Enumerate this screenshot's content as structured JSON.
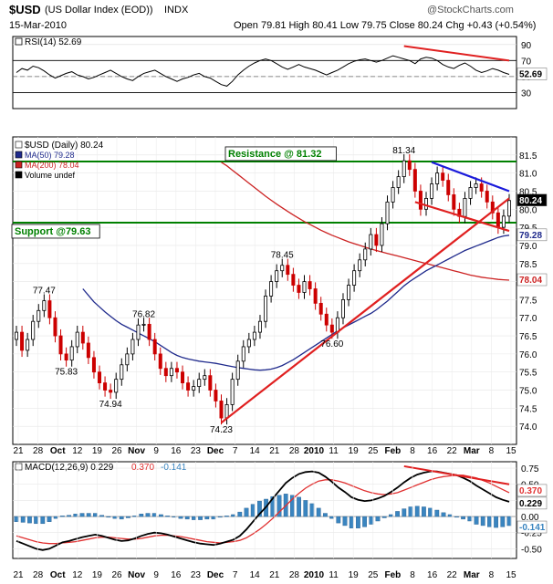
{
  "header": {
    "symbol": "$USD",
    "name": "(US Dollar Index (EOD))",
    "exchange": "INDX",
    "date": "15-Mar-2010",
    "ohlc": "Open 79.81  High 80.41  Low 79.75  Close 80.24  Chg +0.43 (+0.54%)",
    "watermark": "@StockCharts.com"
  },
  "colors": {
    "price_up": "#000000",
    "price_down": "#cc0000",
    "ma50": "#1f2a8c",
    "ma200": "#cc2222",
    "support_resistance": "#008000",
    "trendline_red": "#e02020",
    "trendline_blue": "#1a1adb",
    "macd_line": "#000000",
    "macd_signal": "#e03030",
    "histogram": "#3a85c0"
  },
  "chart_data": [
    {
      "type": "line",
      "panel": "rsi",
      "legend": "RSI(14) 52.69",
      "last_value_label": "52.69",
      "ylim": [
        10,
        100
      ],
      "y_ticks": [
        90,
        70,
        50,
        30
      ],
      "reference_lines": [
        70,
        30
      ],
      "annotations": [
        {
          "kind": "trendline",
          "color": "red",
          "from_date": "2010-02-16",
          "to_date": "2010-03-15",
          "from_value": 88,
          "to_value": 70
        }
      ],
      "series": [
        {
          "values": [
            55,
            60,
            58,
            63,
            61,
            57,
            52,
            48,
            51,
            54,
            56,
            52,
            50,
            47,
            49,
            52,
            55,
            58,
            54,
            50,
            47,
            45,
            50,
            54,
            56,
            58,
            54,
            50,
            47,
            44,
            47,
            49,
            52,
            54,
            50,
            48,
            44,
            40,
            38,
            44,
            52,
            58,
            63,
            67,
            70,
            72,
            70,
            66,
            62,
            59,
            62,
            65,
            62,
            60,
            58,
            55,
            52,
            55,
            58,
            62,
            66,
            69,
            71,
            72,
            70,
            68,
            70,
            73,
            76,
            74,
            72,
            70,
            66,
            72,
            74,
            73,
            70,
            65,
            62,
            60,
            64,
            67,
            63,
            58,
            55,
            57,
            60,
            58,
            55,
            52.69
          ]
        }
      ]
    },
    {
      "type": "candlestick",
      "panel": "price",
      "legend": [
        "$USD (Daily) 80.24",
        "MA(50) 79.28",
        "MA(200) 78.04",
        "Volume undef"
      ],
      "ylim": [
        73.5,
        82.0
      ],
      "y_ticks": [
        81.5,
        81.0,
        80.5,
        80.0,
        79.5,
        79.0,
        78.5,
        78.0,
        77.5,
        77.0,
        76.5,
        76.0,
        75.5,
        75.0,
        74.5,
        74.0
      ],
      "last_value_labels": {
        "close": "80.24",
        "ma50": "79.28",
        "ma200": "78.04"
      },
      "point_labels": [
        {
          "date": "2009-09-28",
          "text": "77.47",
          "value": 77.47
        },
        {
          "date": "2009-10-08",
          "text": "75.83",
          "value": 75.83
        },
        {
          "date": "2009-10-22",
          "text": "74.94",
          "value": 74.94
        },
        {
          "date": "2009-11-02",
          "text": "76.82",
          "value": 76.82
        },
        {
          "date": "2009-11-25",
          "text": "74.23",
          "value": 74.23
        },
        {
          "date": "2009-12-22",
          "text": "78.45",
          "value": 78.45
        },
        {
          "date": "2010-01-11",
          "text": "76.60",
          "value": 76.6
        },
        {
          "date": "2010-02-04",
          "text": "81.34",
          "value": 81.34
        }
      ],
      "annotations": [
        {
          "kind": "horizontal_line",
          "label": "Resistance @ 81.32",
          "value": 81.32,
          "color": "green"
        },
        {
          "kind": "horizontal_line",
          "label": "Support @79.63",
          "value": 79.63,
          "color": "green"
        },
        {
          "kind": "trendline",
          "color": "red",
          "from_date": "2009-11-30",
          "to_date": "2010-03-15",
          "from_value": 74.1,
          "to_value": 80.3
        },
        {
          "kind": "trendline",
          "color": "red",
          "from_date": "2010-02-18",
          "to_date": "2010-03-15",
          "from_value": 80.2,
          "to_value": 79.4
        },
        {
          "kind": "trendline",
          "color": "blue",
          "from_date": "2010-02-23",
          "to_date": "2010-03-15",
          "from_value": 81.3,
          "to_value": 80.5
        }
      ],
      "series": [
        {
          "name": "MA(50)",
          "values": [
            77.8,
            77.62,
            77.44,
            77.3,
            77.16,
            77.04,
            76.92,
            76.82,
            76.74,
            76.66,
            76.58,
            76.5,
            76.42,
            76.34,
            76.24,
            76.14,
            76.04,
            75.96,
            75.9,
            75.86,
            75.83,
            75.8,
            75.78,
            75.76,
            75.74,
            75.71,
            75.68,
            75.65,
            75.62,
            75.6,
            75.58,
            75.56,
            75.55,
            75.56,
            75.58,
            75.62,
            75.68,
            75.76,
            75.84,
            75.94,
            76.04,
            76.14,
            76.24,
            76.34,
            76.44,
            76.54,
            76.64,
            76.72,
            76.8,
            76.88,
            76.96,
            77.04,
            77.12,
            77.22,
            77.34,
            77.46,
            77.6,
            77.74,
            77.88,
            78.0,
            78.1,
            78.2,
            78.3,
            78.38,
            78.46,
            78.54,
            78.62,
            78.7,
            78.78,
            78.86,
            78.92,
            78.98,
            79.04,
            79.1,
            79.16,
            79.22,
            79.26,
            79.28
          ]
        },
        {
          "name": "MA(200)",
          "values": [
            81.3,
            81.2,
            81.08,
            80.96,
            80.84,
            80.72,
            80.6,
            80.48,
            80.36,
            80.25,
            80.14,
            80.04,
            79.94,
            79.84,
            79.75,
            79.66,
            79.58,
            79.5,
            79.42,
            79.35,
            79.28,
            79.22,
            79.16,
            79.1,
            79.05,
            79.0,
            78.95,
            78.9,
            78.86,
            78.82,
            78.78,
            78.74,
            78.7,
            78.66,
            78.62,
            78.58,
            78.54,
            78.5,
            78.46,
            78.42,
            78.38,
            78.34,
            78.3,
            78.26,
            78.22,
            78.18,
            78.15,
            78.12,
            78.1,
            78.08,
            78.06,
            78.05,
            78.04
          ]
        }
      ],
      "close": [
        76.6,
        76.1,
        76.4,
        76.9,
        77.2,
        77.47,
        77.0,
        76.5,
        76.0,
        75.83,
        76.2,
        76.6,
        76.3,
        75.9,
        75.5,
        75.2,
        75.0,
        74.94,
        75.3,
        75.7,
        76.0,
        76.4,
        76.8,
        76.82,
        76.4,
        76.0,
        75.6,
        75.4,
        75.6,
        75.5,
        75.2,
        75.0,
        75.1,
        75.3,
        75.4,
        75.0,
        74.7,
        74.23,
        74.6,
        75.3,
        75.8,
        76.2,
        76.4,
        76.6,
        76.9,
        77.6,
        78.0,
        78.3,
        78.45,
        78.2,
        77.9,
        77.7,
        78.0,
        77.8,
        77.4,
        77.1,
        76.8,
        76.6,
        77.0,
        77.5,
        77.9,
        78.3,
        78.6,
        78.9,
        79.3,
        79.0,
        79.6,
        80.2,
        80.6,
        80.9,
        81.34,
        81.1,
        80.5,
        80.0,
        80.3,
        80.7,
        81.0,
        80.8,
        80.4,
        80.0,
        79.8,
        80.3,
        80.6,
        80.7,
        80.5,
        80.2,
        79.9,
        79.5,
        79.81,
        80.24
      ],
      "x_tick_labels": [
        "21",
        "28",
        "Oct",
        "12",
        "19",
        "26",
        "Nov",
        "9",
        "16",
        "23",
        "Dec",
        "7",
        "14",
        "21",
        "28",
        "2010",
        "11",
        "19",
        "25",
        "Feb",
        "8",
        "16",
        "22",
        "Mar",
        "8",
        "15"
      ]
    },
    {
      "type": "line",
      "panel": "macd",
      "legend": [
        "MACD(12,26,9) 0.229",
        "0.370",
        "-0.141"
      ],
      "ylim": [
        -0.65,
        0.85
      ],
      "y_ticks": [
        0.75,
        0.5,
        0.25,
        0.0,
        -0.25,
        -0.5
      ],
      "last_value_labels": [
        "0.370",
        "0.229",
        "-0.141"
      ],
      "annotations": [
        {
          "kind": "trendline",
          "color": "red",
          "from_date": "2010-02-08",
          "to_date": "2010-03-15",
          "from_value": 0.78,
          "to_value": 0.5
        }
      ],
      "series": [
        {
          "values": [
            -0.38,
            -0.42,
            -0.46,
            -0.5,
            -0.52,
            -0.5,
            -0.45,
            -0.4,
            -0.38,
            -0.35,
            -0.32,
            -0.3,
            -0.28,
            -0.3,
            -0.33,
            -0.36,
            -0.38,
            -0.37,
            -0.34,
            -0.3,
            -0.27,
            -0.25,
            -0.26,
            -0.28,
            -0.31,
            -0.34,
            -0.37,
            -0.4,
            -0.42,
            -0.43,
            -0.44,
            -0.42,
            -0.39,
            -0.36,
            -0.3,
            -0.2,
            -0.08,
            0.04,
            0.15,
            0.28,
            0.4,
            0.52,
            0.6,
            0.66,
            0.69,
            0.7,
            0.68,
            0.62,
            0.54,
            0.45,
            0.38,
            0.3,
            0.26,
            0.24,
            0.25,
            0.28,
            0.32,
            0.38,
            0.45,
            0.53,
            0.6,
            0.65,
            0.68,
            0.7,
            0.7,
            0.68,
            0.66,
            0.64,
            0.6,
            0.55,
            0.48,
            0.42,
            0.36,
            0.3,
            0.26,
            0.229
          ]
        },
        {
          "values": [
            -0.3,
            -0.33,
            -0.36,
            -0.39,
            -0.41,
            -0.42,
            -0.42,
            -0.41,
            -0.4,
            -0.39,
            -0.37,
            -0.35,
            -0.33,
            -0.32,
            -0.32,
            -0.33,
            -0.34,
            -0.35,
            -0.35,
            -0.34,
            -0.32,
            -0.3,
            -0.29,
            -0.29,
            -0.3,
            -0.31,
            -0.33,
            -0.35,
            -0.37,
            -0.39,
            -0.4,
            -0.41,
            -0.4,
            -0.39,
            -0.37,
            -0.33,
            -0.27,
            -0.2,
            -0.12,
            -0.03,
            0.07,
            0.17,
            0.27,
            0.36,
            0.44,
            0.5,
            0.55,
            0.57,
            0.57,
            0.55,
            0.52,
            0.48,
            0.44,
            0.4,
            0.37,
            0.35,
            0.34,
            0.35,
            0.37,
            0.41,
            0.45,
            0.49,
            0.53,
            0.57,
            0.6,
            0.62,
            0.63,
            0.64,
            0.64,
            0.62,
            0.6,
            0.56,
            0.52,
            0.47,
            0.42,
            0.37
          ]
        },
        {
          "values": [
            -0.08,
            -0.09,
            -0.1,
            -0.11,
            -0.11,
            -0.08,
            -0.03,
            0.01,
            0.02,
            0.04,
            0.05,
            0.05,
            0.05,
            0.02,
            -0.01,
            -0.03,
            -0.04,
            -0.02,
            0.01,
            0.04,
            0.05,
            0.05,
            0.03,
            0.01,
            -0.01,
            -0.03,
            -0.04,
            -0.05,
            -0.05,
            -0.04,
            -0.04,
            -0.01,
            0.01,
            0.03,
            0.07,
            0.13,
            0.19,
            0.24,
            0.27,
            0.31,
            0.33,
            0.35,
            0.33,
            0.3,
            0.25,
            0.2,
            0.13,
            0.05,
            -0.03,
            -0.1,
            -0.14,
            -0.18,
            -0.18,
            -0.16,
            -0.12,
            -0.07,
            -0.02,
            0.03,
            0.08,
            0.12,
            0.15,
            0.16,
            0.15,
            0.13,
            0.1,
            0.06,
            0.03,
            0.0,
            -0.04,
            -0.07,
            -0.12,
            -0.14,
            -0.16,
            -0.17,
            -0.16,
            -0.141
          ]
        }
      ],
      "x_tick_labels": [
        "21",
        "28",
        "Oct",
        "12",
        "19",
        "26",
        "Nov",
        "9",
        "16",
        "23",
        "Dec",
        "7",
        "14",
        "21",
        "28",
        "2010",
        "11",
        "19",
        "25",
        "Feb",
        "8",
        "16",
        "22",
        "Mar",
        "8",
        "15"
      ]
    }
  ]
}
